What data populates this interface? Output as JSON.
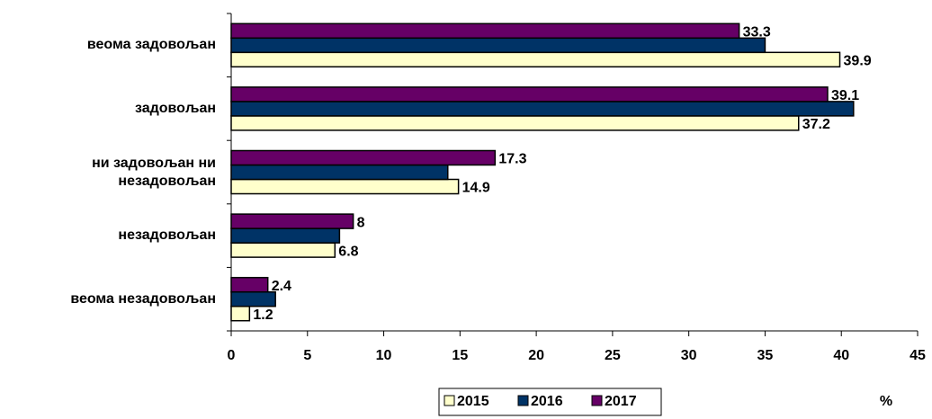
{
  "chart_data": {
    "type": "hbar",
    "categories": [
      "веома задовољан",
      "задовољан",
      "ни задовољан ни\nнезадовољан ",
      "незадовољан",
      "веома незадовољан"
    ],
    "series": [
      {
        "name": "2015",
        "color": "#ffffcc",
        "values": [
          39.9,
          37.2,
          14.9,
          6.8,
          1.2
        ],
        "labels": true
      },
      {
        "name": "2016",
        "color": "#003366",
        "values": [
          35,
          40.8,
          14.2,
          7.1,
          2.9
        ],
        "labels": false
      },
      {
        "name": "2017",
        "color": "#660066",
        "values": [
          33.3,
          39.1,
          17.3,
          8,
          2.4
        ],
        "labels": true
      }
    ],
    "xlim": [
      0,
      45
    ],
    "xticks": [
      0,
      5,
      10,
      15,
      20,
      25,
      30,
      35,
      40,
      45
    ],
    "xlabel": "%",
    "legend": "bottom"
  }
}
